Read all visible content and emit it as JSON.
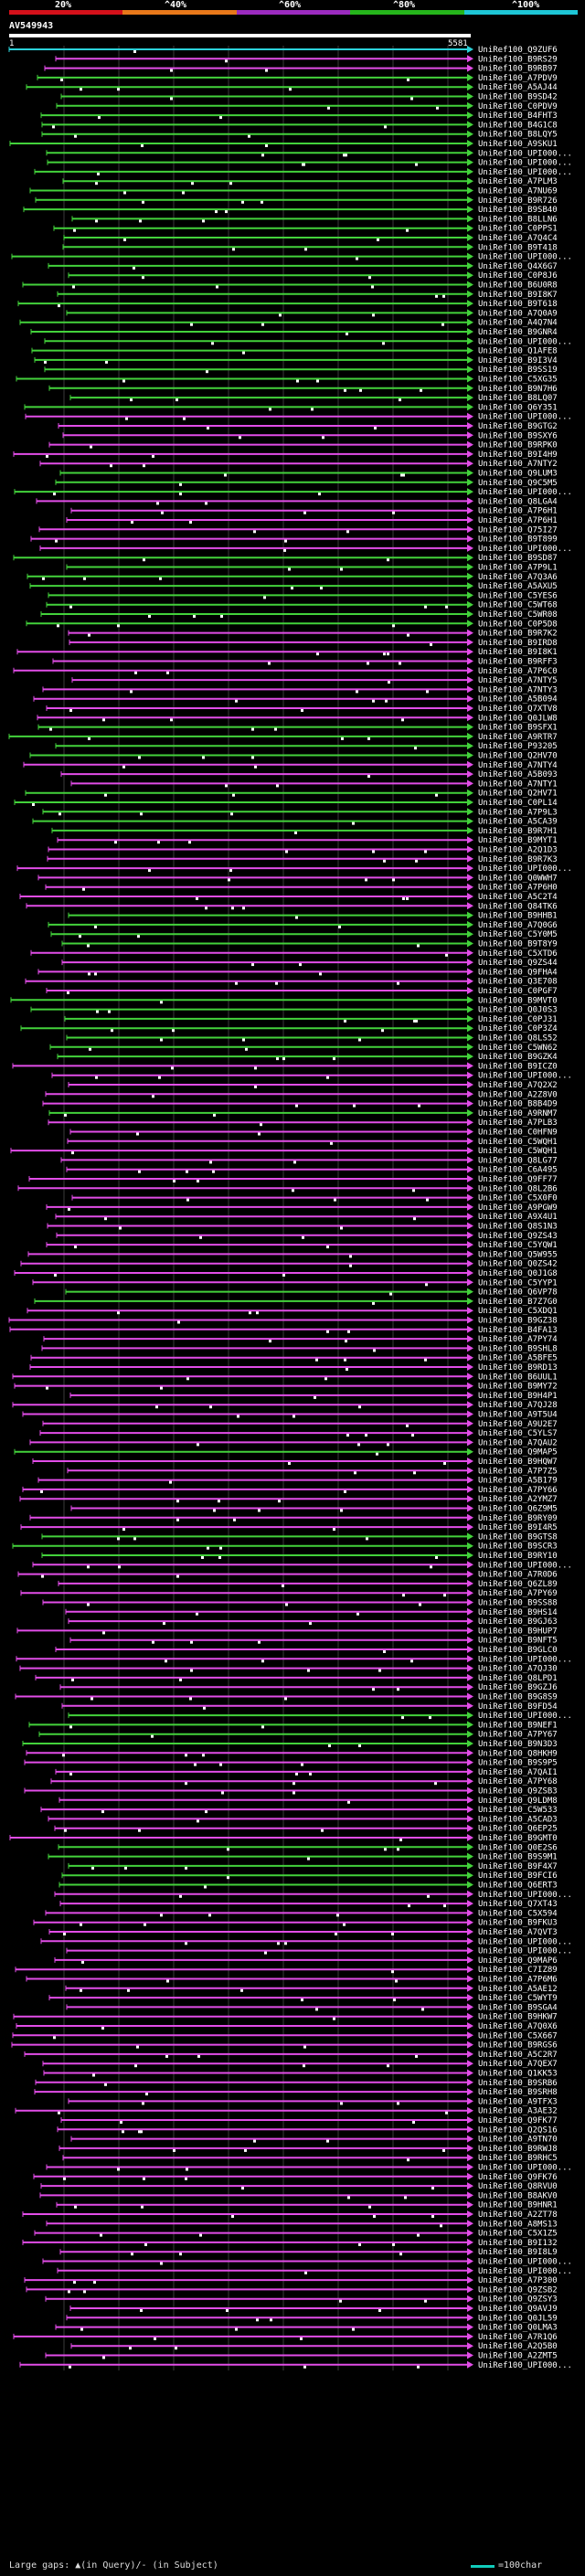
{
  "scale": {
    "ticks": [
      "20%",
      "^40%",
      "^60%",
      "^80%",
      "^100%"
    ],
    "colors": [
      "#d4101a",
      "#e8781a",
      "#9b2bbf",
      "#25b51b",
      "#1ec6d6"
    ]
  },
  "query": {
    "title": "AV549943",
    "start": "1",
    "end": "5581"
  },
  "colors": {
    "magenta": "#e24de8",
    "green": "#43d23b",
    "cyan": "#2bd0d8",
    "grid": "#3a3a3a"
  },
  "hits": [
    {
      "label": "UniRef100_Q9ZUF6",
      "color": "cyan"
    },
    {
      "label": "UniRef100_B9RS29",
      "color": "magenta"
    },
    {
      "label": "UniRef100_B9RB97",
      "color": "magenta"
    },
    {
      "label": "UniRef100_A7PDV9",
      "color": "green"
    },
    {
      "label": "UniRef100_A5AJ44",
      "color": "green"
    },
    {
      "label": "UniRef100_B9SD42",
      "color": "green"
    },
    {
      "label": "UniRef100_C0PDV9",
      "color": "green"
    },
    {
      "label": "UniRef100_B4FHT3",
      "color": "green"
    },
    {
      "label": "UniRef100_B4G1C8",
      "color": "green"
    },
    {
      "label": "UniRef100_B8LQY5",
      "color": "green"
    },
    {
      "label": "UniRef100_A9SKU1",
      "color": "green"
    },
    {
      "label": "UniRef100_UPI000...",
      "color": "green"
    },
    {
      "label": "UniRef100_UPI000...",
      "color": "green"
    },
    {
      "label": "UniRef100_UPI000...",
      "color": "green"
    },
    {
      "label": "UniRef100_A7PLM3",
      "color": "green"
    },
    {
      "label": "UniRef100_A7NU69",
      "color": "green"
    },
    {
      "label": "UniRef100_B9R726",
      "color": "green"
    },
    {
      "label": "UniRef100_B9SB40",
      "color": "green"
    },
    {
      "label": "UniRef100_B8LLN6",
      "color": "green"
    },
    {
      "label": "UniRef100_C0PPS1",
      "color": "green"
    },
    {
      "label": "UniRef100_A7Q4C4",
      "color": "green"
    },
    {
      "label": "UniRef100_B9T418",
      "color": "green"
    },
    {
      "label": "UniRef100_UPI000...",
      "color": "green"
    },
    {
      "label": "UniRef100_Q4X6G7",
      "color": "green"
    },
    {
      "label": "UniRef100_C0P8J6",
      "color": "green"
    },
    {
      "label": "UniRef100_B6U0R8",
      "color": "green"
    },
    {
      "label": "UniRef100_B9I8K7",
      "color": "green"
    },
    {
      "label": "UniRef100_B9T618",
      "color": "green"
    },
    {
      "label": "UniRef100_A7Q0A9",
      "color": "green"
    },
    {
      "label": "UniRef100_A4Q7N4",
      "color": "green"
    },
    {
      "label": "UniRef100_B9GNR4",
      "color": "green"
    },
    {
      "label": "UniRef100_UPI000...",
      "color": "green"
    },
    {
      "label": "UniRef100_Q1AFE8",
      "color": "green"
    },
    {
      "label": "UniRef100_B9I3V4",
      "color": "green"
    },
    {
      "label": "UniRef100_B9SS19",
      "color": "green"
    },
    {
      "label": "UniRef100_C5XG35",
      "color": "green"
    },
    {
      "label": "UniRef100_B9N7H6",
      "color": "green"
    },
    {
      "label": "UniRef100_B8LQ07",
      "color": "green"
    },
    {
      "label": "UniRef100_Q6Y351",
      "color": "green"
    },
    {
      "label": "UniRef100_UPI000...",
      "color": "magenta"
    },
    {
      "label": "UniRef100_B9GTG2",
      "color": "magenta"
    },
    {
      "label": "UniRef100_B9SXY6",
      "color": "magenta"
    },
    {
      "label": "UniRef100_B9RPK0",
      "color": "magenta"
    },
    {
      "label": "UniRef100_B9I4H9",
      "color": "magenta"
    },
    {
      "label": "UniRef100_A7NTY2",
      "color": "magenta"
    },
    {
      "label": "UniRef100_Q9LUM3",
      "color": "green"
    },
    {
      "label": "UniRef100_Q9C5M5",
      "color": "green"
    },
    {
      "label": "UniRef100_UPI000...",
      "color": "green"
    },
    {
      "label": "UniRef100_Q8LGA4",
      "color": "magenta"
    },
    {
      "label": "UniRef100_A7P6H1",
      "color": "magenta"
    },
    {
      "label": "UniRef100_A7P6H1",
      "color": "magenta"
    },
    {
      "label": "UniRef100_Q75I27",
      "color": "magenta"
    },
    {
      "label": "UniRef100_B9T899",
      "color": "magenta"
    },
    {
      "label": "UniRef100_UPI000...",
      "color": "magenta"
    },
    {
      "label": "UniRef100_B9SD87",
      "color": "green"
    },
    {
      "label": "UniRef100_A7P9L1",
      "color": "green"
    },
    {
      "label": "UniRef100_A7Q3A6",
      "color": "green"
    },
    {
      "label": "UniRef100_A5AXU5",
      "color": "green"
    },
    {
      "label": "UniRef100_C5YES6",
      "color": "green"
    },
    {
      "label": "UniRef100_C5WT68",
      "color": "green"
    },
    {
      "label": "UniRef100_C5WR08",
      "color": "green"
    },
    {
      "label": "UniRef100_C0P5D8",
      "color": "green"
    },
    {
      "label": "UniRef100_B9R7K2",
      "color": "magenta"
    },
    {
      "label": "UniRef100_B9IRD8",
      "color": "magenta"
    },
    {
      "label": "UniRef100_B9I8K1",
      "color": "magenta"
    },
    {
      "label": "UniRef100_B9RFF3",
      "color": "magenta"
    },
    {
      "label": "UniRef100_A7P6C0",
      "color": "magenta"
    },
    {
      "label": "UniRef100_A7NTY5",
      "color": "magenta"
    },
    {
      "label": "UniRef100_A7NTY3",
      "color": "magenta"
    },
    {
      "label": "UniRef100_A5B094",
      "color": "magenta"
    },
    {
      "label": "UniRef100_Q7XTV8",
      "color": "magenta"
    },
    {
      "label": "UniRef100_Q0JLW8",
      "color": "magenta"
    },
    {
      "label": "UniRef100_B9SFX1",
      "color": "green"
    },
    {
      "label": "UniRef100_A9RTR7",
      "color": "green"
    },
    {
      "label": "UniRef100_P93205",
      "color": "green"
    },
    {
      "label": "UniRef100_Q2HV70",
      "color": "green"
    },
    {
      "label": "UniRef100_A7NTY4",
      "color": "magenta"
    },
    {
      "label": "UniRef100_A5B093",
      "color": "magenta"
    },
    {
      "label": "UniRef100_A7NTY1",
      "color": "magenta"
    },
    {
      "label": "UniRef100_Q2HV71",
      "color": "green"
    },
    {
      "label": "UniRef100_C0PL14",
      "color": "green"
    },
    {
      "label": "UniRef100_A7P9L3",
      "color": "green"
    },
    {
      "label": "UniRef100_A5CA39",
      "color": "green"
    },
    {
      "label": "UniRef100_B9R7H1",
      "color": "green"
    },
    {
      "label": "UniRef100_B9MYT1",
      "color": "magenta"
    },
    {
      "label": "UniRef100_A2Q1D3",
      "color": "magenta"
    },
    {
      "label": "UniRef100_B9R7K3",
      "color": "magenta"
    },
    {
      "label": "UniRef100_UPI000...",
      "color": "magenta"
    },
    {
      "label": "UniRef100_Q0WWH7",
      "color": "magenta"
    },
    {
      "label": "UniRef100_A7P6H0",
      "color": "magenta"
    },
    {
      "label": "UniRef100_A5C2T4",
      "color": "magenta"
    },
    {
      "label": "UniRef100_Q84TK6",
      "color": "magenta"
    },
    {
      "label": "UniRef100_B9HHB1",
      "color": "green"
    },
    {
      "label": "UniRef100_A7Q0G6",
      "color": "green"
    },
    {
      "label": "UniRef100_C5Y0M5",
      "color": "green"
    },
    {
      "label": "UniRef100_B9T8Y9",
      "color": "green"
    },
    {
      "label": "UniRef100_C5XTD6",
      "color": "magenta"
    },
    {
      "label": "UniRef100_Q9ZS44",
      "color": "magenta"
    },
    {
      "label": "UniRef100_Q9FHA4",
      "color": "magenta"
    },
    {
      "label": "UniRef100_Q3E708",
      "color": "magenta"
    },
    {
      "label": "UniRef100_C0PGF7",
      "color": "magenta"
    },
    {
      "label": "UniRef100_B9MVT0",
      "color": "green"
    },
    {
      "label": "UniRef100_Q0J0S3",
      "color": "green"
    },
    {
      "label": "UniRef100_C0PJ31",
      "color": "green"
    },
    {
      "label": "UniRef100_C0P3Z4",
      "color": "green"
    },
    {
      "label": "UniRef100_Q8LS52",
      "color": "green"
    },
    {
      "label": "UniRef100_C5WN62",
      "color": "green"
    },
    {
      "label": "UniRef100_B9GZK4",
      "color": "green"
    },
    {
      "label": "UniRef100_B9ICZ0",
      "color": "magenta"
    },
    {
      "label": "UniRef100_UPI000...",
      "color": "magenta"
    },
    {
      "label": "UniRef100_A7Q2X2",
      "color": "magenta"
    },
    {
      "label": "UniRef100_A2Z8V0",
      "color": "magenta"
    },
    {
      "label": "UniRef100_B8B4D9",
      "color": "magenta"
    },
    {
      "label": "UniRef100_A9RNM7",
      "color": "green"
    },
    {
      "label": "UniRef100_A7PLB3",
      "color": "magenta"
    },
    {
      "label": "UniRef100_C0HFN9",
      "color": "magenta"
    },
    {
      "label": "UniRef100_C5WQH1",
      "color": "magenta"
    },
    {
      "label": "UniRef100_C5WQH1",
      "color": "magenta"
    },
    {
      "label": "UniRef100_Q8LG77",
      "color": "magenta"
    },
    {
      "label": "UniRef100_C6A495",
      "color": "magenta"
    },
    {
      "label": "UniRef100_Q9FF77",
      "color": "magenta"
    },
    {
      "label": "UniRef100_Q8L2B6",
      "color": "magenta"
    },
    {
      "label": "UniRef100_C5X0F0",
      "color": "magenta"
    },
    {
      "label": "UniRef100_A9PGW9",
      "color": "magenta"
    },
    {
      "label": "UniRef100_A9X4U1",
      "color": "magenta"
    },
    {
      "label": "UniRef100_Q8S1N3",
      "color": "magenta"
    },
    {
      "label": "UniRef100_Q9ZS43",
      "color": "magenta"
    },
    {
      "label": "UniRef100_C5YQW1",
      "color": "magenta"
    },
    {
      "label": "UniRef100_Q5W955",
      "color": "magenta"
    },
    {
      "label": "UniRef100_Q0ZS42",
      "color": "magenta"
    },
    {
      "label": "UniRef100_Q0J1G8",
      "color": "magenta"
    },
    {
      "label": "UniRef100_C5YYP1",
      "color": "magenta"
    },
    {
      "label": "UniRef100_Q6VP78",
      "color": "green"
    },
    {
      "label": "UniRef100_B7Z7G0",
      "color": "green"
    },
    {
      "label": "UniRef100_C5XDQ1",
      "color": "magenta"
    },
    {
      "label": "UniRef100_B9GZ38",
      "color": "magenta"
    },
    {
      "label": "UniRef100_B4FA13",
      "color": "magenta"
    },
    {
      "label": "UniRef100_A7PY74",
      "color": "magenta"
    },
    {
      "label": "UniRef100_B9SHL8",
      "color": "magenta"
    },
    {
      "label": "UniRef100_A5BFE5",
      "color": "magenta"
    },
    {
      "label": "UniRef100_B9RD13",
      "color": "magenta"
    },
    {
      "label": "UniRef100_B6UUL1",
      "color": "magenta"
    },
    {
      "label": "UniRef100_B9MY72",
      "color": "magenta"
    },
    {
      "label": "UniRef100_B9H4P1",
      "color": "magenta"
    },
    {
      "label": "UniRef100_A7QJ28",
      "color": "magenta"
    },
    {
      "label": "UniRef100_A9T5U4",
      "color": "magenta"
    },
    {
      "label": "UniRef100_A9U2E7",
      "color": "magenta"
    },
    {
      "label": "UniRef100_C5YLS7",
      "color": "magenta"
    },
    {
      "label": "UniRef100_A7QAU2",
      "color": "magenta"
    },
    {
      "label": "UniRef100_Q9MAP5",
      "color": "green"
    },
    {
      "label": "UniRef100_B9HQW7",
      "color": "magenta"
    },
    {
      "label": "UniRef100_A7P7Z5",
      "color": "magenta"
    },
    {
      "label": "UniRef100_A5B179",
      "color": "magenta"
    },
    {
      "label": "UniRef100_A7PY66",
      "color": "magenta"
    },
    {
      "label": "UniRef100_A2YMZ7",
      "color": "magenta"
    },
    {
      "label": "UniRef100_Q6Z9M5",
      "color": "magenta"
    },
    {
      "label": "UniRef100_B9RY09",
      "color": "magenta"
    },
    {
      "label": "UniRef100_B9I4R5",
      "color": "magenta"
    },
    {
      "label": "UniRef100_B9GTS8",
      "color": "green"
    },
    {
      "label": "UniRef100_B9SCR3",
      "color": "green"
    },
    {
      "label": "UniRef100_B9RY10",
      "color": "green"
    },
    {
      "label": "UniRef100_UPI000...",
      "color": "magenta"
    },
    {
      "label": "UniRef100_A7R0D6",
      "color": "magenta"
    },
    {
      "label": "UniRef100_Q6ZL89",
      "color": "magenta"
    },
    {
      "label": "UniRef100_A7PY69",
      "color": "magenta"
    },
    {
      "label": "UniRef100_B9SS88",
      "color": "magenta"
    },
    {
      "label": "UniRef100_B9HS14",
      "color": "magenta"
    },
    {
      "label": "UniRef100_B9GJ63",
      "color": "magenta"
    },
    {
      "label": "UniRef100_B9HUP7",
      "color": "magenta"
    },
    {
      "label": "UniRef100_B9NFT5",
      "color": "magenta"
    },
    {
      "label": "UniRef100_B9GLC0",
      "color": "magenta"
    },
    {
      "label": "UniRef100_UPI000...",
      "color": "magenta"
    },
    {
      "label": "UniRef100_A7QJ30",
      "color": "magenta"
    },
    {
      "label": "UniRef100_Q8LPD1",
      "color": "magenta"
    },
    {
      "label": "UniRef100_B9GZJ6",
      "color": "magenta"
    },
    {
      "label": "UniRef100_B9G8S9",
      "color": "magenta"
    },
    {
      "label": "UniRef100_B9FD54",
      "color": "magenta"
    },
    {
      "label": "UniRef100_UPI000...",
      "color": "green"
    },
    {
      "label": "UniRef100_B9NEF1",
      "color": "green"
    },
    {
      "label": "UniRef100_A7PY67",
      "color": "green"
    },
    {
      "label": "UniRef100_B9N3D3",
      "color": "green"
    },
    {
      "label": "UniRef100_Q8HKH9",
      "color": "magenta"
    },
    {
      "label": "UniRef100_B9S9P5",
      "color": "magenta"
    },
    {
      "label": "UniRef100_A7QAI1",
      "color": "magenta"
    },
    {
      "label": "UniRef100_A7PY68",
      "color": "magenta"
    },
    {
      "label": "UniRef100_Q9ZSB3",
      "color": "magenta"
    },
    {
      "label": "UniRef100_Q9LDM8",
      "color": "magenta"
    },
    {
      "label": "UniRef100_C5W533",
      "color": "magenta"
    },
    {
      "label": "UniRef100_A5CAD3",
      "color": "magenta"
    },
    {
      "label": "UniRef100_Q6EP25",
      "color": "magenta"
    },
    {
      "label": "UniRef100_B9GMT0",
      "color": "magenta"
    },
    {
      "label": "UniRef100_Q0E2S6",
      "color": "green"
    },
    {
      "label": "UniRef100_B9S9M1",
      "color": "green"
    },
    {
      "label": "UniRef100_B9F4X7",
      "color": "green"
    },
    {
      "label": "UniRef100_B9FCI6",
      "color": "green"
    },
    {
      "label": "UniRef100_Q6ERT3",
      "color": "green"
    },
    {
      "label": "UniRef100_UPI000...",
      "color": "magenta"
    },
    {
      "label": "UniRef100_Q7XT43",
      "color": "magenta"
    },
    {
      "label": "UniRef100_C5X594",
      "color": "magenta"
    },
    {
      "label": "UniRef100_B9FKU3",
      "color": "magenta"
    },
    {
      "label": "UniRef100_A7QVT3",
      "color": "magenta"
    },
    {
      "label": "UniRef100_UPI000...",
      "color": "magenta"
    },
    {
      "label": "UniRef100_UPI000...",
      "color": "magenta"
    },
    {
      "label": "UniRef100_Q9MAP6",
      "color": "magenta"
    },
    {
      "label": "UniRef100_C7IZ89",
      "color": "magenta"
    },
    {
      "label": "UniRef100_A7P6M6",
      "color": "magenta"
    },
    {
      "label": "UniRef100_A5AE12",
      "color": "magenta"
    },
    {
      "label": "UniRef100_C5WYT9",
      "color": "magenta"
    },
    {
      "label": "UniRef100_B9SGA4",
      "color": "magenta"
    },
    {
      "label": "UniRef100_B9HKW7",
      "color": "magenta"
    },
    {
      "label": "UniRef100_A7Q0X6",
      "color": "magenta"
    },
    {
      "label": "UniRef100_C5X667",
      "color": "magenta"
    },
    {
      "label": "UniRef100_B9RGS6",
      "color": "magenta"
    },
    {
      "label": "UniRef100_A5C2R7",
      "color": "magenta"
    },
    {
      "label": "UniRef100_A7QEX7",
      "color": "magenta"
    },
    {
      "label": "UniRef100_Q1KK53",
      "color": "magenta"
    },
    {
      "label": "UniRef100_B9SRB6",
      "color": "magenta"
    },
    {
      "label": "UniRef100_B9SRH8",
      "color": "magenta"
    },
    {
      "label": "UniRef100_A9TFX3",
      "color": "magenta"
    },
    {
      "label": "UniRef100_A3AE32",
      "color": "magenta"
    },
    {
      "label": "UniRef100_Q9FK77",
      "color": "magenta"
    },
    {
      "label": "UniRef100_Q2QS16",
      "color": "magenta"
    },
    {
      "label": "UniRef100_A9TN70",
      "color": "magenta"
    },
    {
      "label": "UniRef100_B9RWJ8",
      "color": "magenta"
    },
    {
      "label": "UniRef100_B9RHC5",
      "color": "magenta"
    },
    {
      "label": "UniRef100_UPI000...",
      "color": "magenta"
    },
    {
      "label": "UniRef100_Q9FK76",
      "color": "magenta"
    },
    {
      "label": "UniRef100_Q8RVU0",
      "color": "magenta"
    },
    {
      "label": "UniRef100_B8AKV0",
      "color": "magenta"
    },
    {
      "label": "UniRef100_B9HNR1",
      "color": "magenta"
    },
    {
      "label": "UniRef100_A2ZT78",
      "color": "magenta"
    },
    {
      "label": "UniRef100_A8MS13",
      "color": "magenta"
    },
    {
      "label": "UniRef100_C5X1Z5",
      "color": "magenta"
    },
    {
      "label": "UniRef100_B9I132",
      "color": "magenta"
    },
    {
      "label": "UniRef100_B9I8L9",
      "color": "magenta"
    },
    {
      "label": "UniRef100_UPI000...",
      "color": "magenta"
    },
    {
      "label": "UniRef100_UPI000...",
      "color": "magenta"
    },
    {
      "label": "UniRef100_A7P300",
      "color": "magenta"
    },
    {
      "label": "UniRef100_Q9ZSB2",
      "color": "magenta"
    },
    {
      "label": "UniRef100_Q9ZSY3",
      "color": "magenta"
    },
    {
      "label": "UniRef100_Q9AVJ9",
      "color": "magenta"
    },
    {
      "label": "UniRef100_Q0JL59",
      "color": "magenta"
    },
    {
      "label": "UniRef100_Q0LMA3",
      "color": "magenta"
    },
    {
      "label": "UniRef100_A7R1Q6",
      "color": "magenta"
    },
    {
      "label": "UniRef100_A2Q5B0",
      "color": "magenta"
    },
    {
      "label": "UniRef100_A2ZMT5",
      "color": "magenta"
    },
    {
      "label": "UniRef100_UPI000...",
      "color": "magenta"
    }
  ],
  "legend": {
    "text": "Large gaps: ▲(in Query)/- (in Subject)",
    "scale_text": "=100char"
  }
}
